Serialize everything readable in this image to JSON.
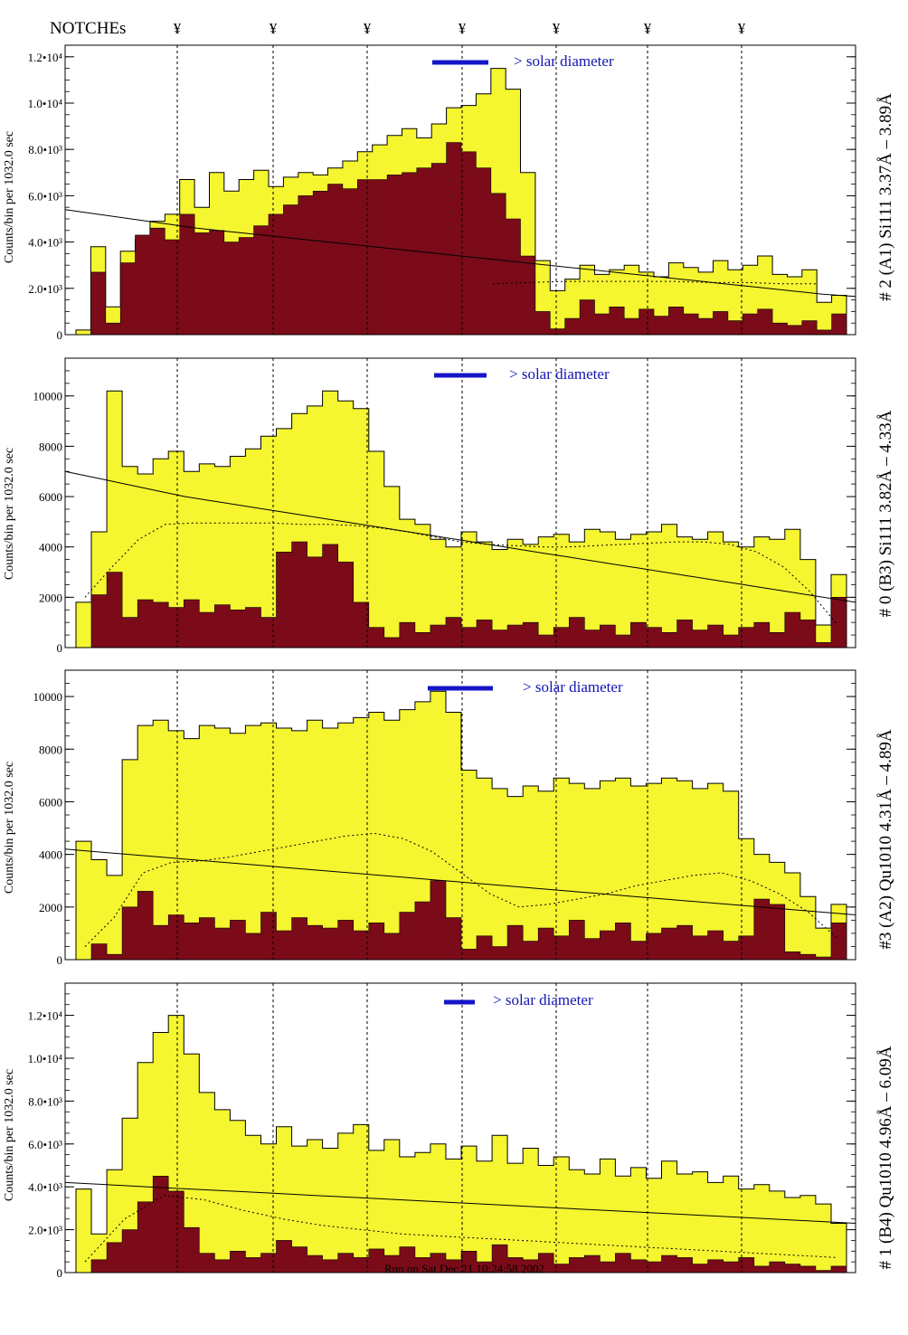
{
  "header": {
    "notches_label": "NOTCHEs",
    "notch_symbol": "¥"
  },
  "footer": {
    "run_text": "Run on Sat Dec 21 10:24:58 2002"
  },
  "colors": {
    "total_fill": "#f5f530",
    "sub_fill": "#7b0b18",
    "solar_bar": "#1414c8",
    "outline": "#000000"
  },
  "chart_data": [
    {
      "type": "area",
      "side_title": "# 2 (A1) Si111  3.37Å – 3.89Å",
      "ylabel": "Counts/bin per   1032.0 sec",
      "ylim": [
        0,
        12500
      ],
      "yticks": [
        0,
        2000,
        4000,
        6000,
        8000,
        10000,
        12000
      ],
      "ytick_labels": [
        "0",
        "2.0•10³",
        "4.0•10³",
        "6.0•10³",
        "8.0•10³",
        "1.0•10⁴",
        "1.2•10⁴"
      ],
      "solar_label": "> solar diameter",
      "series": [
        {
          "role": "total",
          "values": [
            200,
            3800,
            1200,
            3600,
            4100,
            4900,
            5200,
            6700,
            5500,
            7000,
            6200,
            6700,
            7100,
            6400,
            6800,
            7000,
            6900,
            7200,
            7500,
            7900,
            8200,
            8600,
            8900,
            8500,
            9100,
            9800,
            9900,
            10400,
            11500,
            10600,
            7000,
            3200,
            1900,
            2400,
            3000,
            2600,
            2800,
            3000,
            2700,
            2500,
            3100,
            2900,
            2700,
            3200,
            2800,
            3000,
            3400,
            2600,
            2500,
            2800,
            1400,
            1700
          ]
        },
        {
          "role": "sub",
          "values": [
            0,
            2700,
            500,
            3100,
            4300,
            4600,
            4100,
            5200,
            4400,
            4500,
            4000,
            4200,
            4700,
            5200,
            5600,
            6000,
            6200,
            6500,
            6300,
            6700,
            6700,
            6900,
            7000,
            7200,
            7400,
            8300,
            7900,
            7200,
            6100,
            5000,
            3400,
            1000,
            250,
            700,
            1500,
            900,
            1200,
            700,
            1100,
            800,
            1200,
            900,
            700,
            1000,
            600,
            900,
            1100,
            500,
            400,
            600,
            200,
            900
          ]
        },
        {
          "role": "fit",
          "values": [
            5400,
            5200,
            5000,
            4800,
            4600,
            4450,
            4300,
            4150,
            4000,
            3850,
            3700,
            3550,
            3400,
            3250,
            3100,
            2950,
            2800,
            2650,
            2500,
            2350,
            2200,
            2050,
            1900,
            1750,
            1650
          ]
        },
        {
          "role": "smooth",
          "values": [
            2200,
            2250,
            2300,
            2300,
            2300,
            2300,
            2250,
            2250,
            2200,
            2200
          ]
        }
      ]
    },
    {
      "type": "area",
      "side_title": "# 0 (B3) Si111  3.82Å – 4.33Å",
      "ylabel": "Counts/bin per   1032.0 sec",
      "ylim": [
        0,
        11500
      ],
      "yticks": [
        0,
        2000,
        4000,
        6000,
        8000,
        10000
      ],
      "ytick_labels": [
        "0",
        "2000",
        "4000",
        "6000",
        "8000",
        "10000"
      ],
      "solar_label": "> solar diameter",
      "series": [
        {
          "role": "total",
          "values": [
            1800,
            4600,
            10200,
            7200,
            6900,
            7500,
            7800,
            7000,
            7300,
            7200,
            7600,
            7900,
            8400,
            8700,
            9300,
            9600,
            10200,
            9800,
            9500,
            7800,
            6400,
            5100,
            4900,
            4300,
            4000,
            4600,
            4200,
            3900,
            4300,
            4100,
            4400,
            4500,
            4200,
            4700,
            4600,
            4300,
            4500,
            4600,
            4900,
            4400,
            4300,
            4600,
            4200,
            4000,
            4400,
            4300,
            4700,
            3500,
            900,
            2900
          ]
        },
        {
          "role": "sub",
          "values": [
            0,
            2100,
            3000,
            1200,
            1900,
            1800,
            1600,
            1900,
            1400,
            1700,
            1500,
            1600,
            1200,
            3800,
            4200,
            3600,
            4100,
            3400,
            1800,
            800,
            400,
            1000,
            600,
            900,
            1200,
            800,
            1100,
            700,
            900,
            1000,
            500,
            800,
            1200,
            700,
            900,
            500,
            1000,
            800,
            600,
            1100,
            700,
            900,
            500,
            800,
            1000,
            600,
            1400,
            1100,
            200,
            2000
          ]
        },
        {
          "role": "fit",
          "values": [
            7000,
            6800,
            6600,
            6400,
            6200,
            6000,
            5850,
            5700,
            5550,
            5400,
            5250,
            5100,
            4950,
            4800,
            4650,
            4500,
            4350,
            4200,
            4050,
            3900,
            3750,
            3600,
            3450,
            3300,
            3150,
            3000,
            2850,
            2700,
            2550,
            2400,
            2250,
            2100,
            1950,
            1800
          ]
        },
        {
          "role": "smooth",
          "values": [
            2000,
            3200,
            4300,
            4900,
            4950,
            4950,
            4950,
            4950,
            4900,
            4900,
            4850,
            4750,
            4600,
            4400,
            4200,
            4100,
            4050,
            4000,
            4000,
            4050,
            4100,
            4150,
            4200,
            4200,
            4100,
            3800,
            3200,
            2200,
            900
          ]
        }
      ]
    },
    {
      "type": "area",
      "side_title": "#3 (A2) Qu1010  4.31Å – 4.89Å",
      "ylabel": "Counts/bin per   1032.0 sec",
      "ylim": [
        0,
        11000
      ],
      "yticks": [
        0,
        2000,
        4000,
        6000,
        8000,
        10000
      ],
      "ytick_labels": [
        "0",
        "2000",
        "4000",
        "6000",
        "8000",
        "10000"
      ],
      "solar_label": "> solar diameter",
      "series": [
        {
          "role": "total",
          "values": [
            4500,
            3800,
            3200,
            7600,
            8900,
            9100,
            8700,
            8400,
            8900,
            8800,
            8600,
            8900,
            9000,
            8800,
            8700,
            9100,
            8800,
            9000,
            9200,
            9400,
            9100,
            9500,
            9800,
            10200,
            9400,
            7200,
            6900,
            6500,
            6200,
            6600,
            6400,
            6900,
            6700,
            6500,
            6800,
            6900,
            6600,
            6700,
            6900,
            6800,
            6500,
            6700,
            6400,
            4600,
            4000,
            3700,
            3300,
            2400,
            1200,
            2100
          ]
        },
        {
          "role": "sub",
          "values": [
            0,
            600,
            200,
            2000,
            2600,
            1300,
            1700,
            1400,
            1600,
            1200,
            1500,
            1000,
            1800,
            1100,
            1600,
            1300,
            1200,
            1500,
            1100,
            1400,
            1000,
            1800,
            2200,
            3000,
            1600,
            400,
            900,
            500,
            1300,
            700,
            1200,
            900,
            1500,
            800,
            1100,
            1400,
            700,
            1000,
            1200,
            1300,
            900,
            1100,
            700,
            900,
            2300,
            2100,
            300,
            200,
            100,
            1400
          ]
        },
        {
          "role": "fit",
          "values": [
            4200,
            4100,
            4000,
            3900,
            3800,
            3700,
            3600,
            3500,
            3400,
            3300,
            3200,
            3100,
            3000,
            2900,
            2800,
            2700,
            2600,
            2500,
            2400,
            2300,
            2200,
            2100,
            2000,
            1900,
            1800,
            1700
          ]
        },
        {
          "role": "smooth",
          "values": [
            500,
            1600,
            3300,
            3700,
            3750,
            3900,
            4100,
            4300,
            4500,
            4700,
            4800,
            4600,
            4100,
            3300,
            2500,
            2000,
            2100,
            2300,
            2500,
            2800,
            3000,
            3200,
            3300,
            3000,
            2500,
            1800,
            800
          ]
        }
      ]
    },
    {
      "type": "area",
      "side_title": "# 1 (B4) Qu1010 4.96Å – 6.09Å",
      "ylabel": "Counts/bin per   1032.0 sec",
      "ylim": [
        0,
        13500
      ],
      "yticks": [
        0,
        2000,
        4000,
        6000,
        8000,
        10000,
        12000
      ],
      "ytick_labels": [
        "0",
        "2.0•10³",
        "4.0•10³",
        "6.0•10³",
        "8.0•10³",
        "1.0•10⁴",
        "1.2•10⁴"
      ],
      "solar_label": "> solar diameter",
      "series": [
        {
          "role": "total",
          "values": [
            3900,
            1800,
            4800,
            7200,
            9800,
            11200,
            12000,
            10200,
            8400,
            7600,
            7100,
            6400,
            6000,
            6800,
            5900,
            6200,
            5800,
            6500,
            6900,
            5700,
            6200,
            5400,
            5600,
            6000,
            5300,
            5900,
            5200,
            6400,
            5100,
            5800,
            5000,
            5400,
            4800,
            4600,
            5300,
            4500,
            4900,
            4400,
            5200,
            4600,
            4700,
            4200,
            4500,
            3900,
            4100,
            3800,
            3500,
            3600,
            3200,
            2300
          ]
        },
        {
          "role": "sub",
          "values": [
            0,
            600,
            1400,
            2000,
            3300,
            4500,
            3800,
            2100,
            900,
            600,
            1000,
            700,
            900,
            1500,
            1200,
            800,
            600,
            900,
            700,
            1100,
            800,
            1200,
            700,
            900,
            600,
            1000,
            500,
            1300,
            700,
            600,
            900,
            400,
            700,
            800,
            500,
            900,
            600,
            500,
            800,
            700,
            400,
            600,
            500,
            700,
            300,
            500,
            400,
            300,
            100,
            300
          ]
        },
        {
          "role": "fit",
          "values": [
            4200,
            4100,
            4000,
            3900,
            3800,
            3700,
            3600,
            3500,
            3400,
            3300,
            3200,
            3100,
            3000,
            2900,
            2800,
            2700,
            2600,
            2500,
            2400,
            2300
          ]
        },
        {
          "role": "smooth",
          "values": [
            500,
            2500,
            3600,
            3400,
            2900,
            2500,
            2200,
            2000,
            1800,
            1700,
            1600,
            1500,
            1400,
            1300,
            1200,
            1100,
            1000,
            900,
            800,
            700
          ]
        }
      ]
    }
  ]
}
